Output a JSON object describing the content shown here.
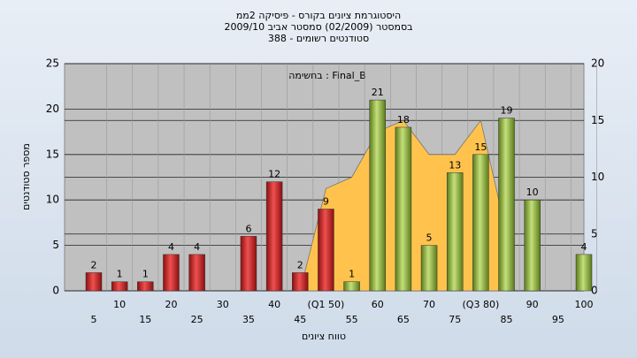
{
  "chart_data": {
    "type": "bar",
    "title": [
      "היסטוגרמת ציונים בקורס - פיסיקה 2ממ",
      "בסמסטר  (02/2009)  סמסטר אביב 2009/10",
      "סטודנטים רשומים - 388"
    ],
    "annotation": "בחשימה : Final_B",
    "y_label": "מספר סטודנטים",
    "x_label": "טווח ציונים",
    "categories": [
      "5",
      "10",
      "15",
      "20",
      "25",
      "30",
      "35",
      "40",
      "45",
      "(Q1 50)",
      "55",
      "60",
      "65",
      "70",
      "75",
      "(Q3 80)",
      "85",
      "90",
      "95",
      "100"
    ],
    "series": [
      {
        "color": "#d42020",
        "values": [
          2,
          1,
          1,
          4,
          4,
          null,
          6,
          12,
          2,
          9,
          null,
          null,
          null,
          null,
          null,
          null,
          null,
          null,
          null,
          null
        ]
      },
      {
        "color": "#8db23a",
        "values": [
          null,
          null,
          null,
          null,
          null,
          null,
          null,
          null,
          null,
          null,
          1,
          21,
          18,
          5,
          13,
          15,
          19,
          10,
          null,
          4
        ]
      },
      {
        "type": "area",
        "axis": "y2",
        "color": "#ffc34d",
        "values": [
          null,
          null,
          null,
          null,
          null,
          null,
          null,
          null,
          0,
          9,
          10,
          14,
          15,
          12,
          12,
          15,
          5,
          null,
          null,
          null
        ]
      }
    ],
    "ylim": [
      0,
      25
    ],
    "yticks": [
      0,
      5,
      10,
      15,
      20,
      25
    ],
    "y2lim": [
      0,
      20
    ],
    "y2ticks": [
      0,
      5,
      10,
      15,
      20
    ],
    "grid": true
  }
}
